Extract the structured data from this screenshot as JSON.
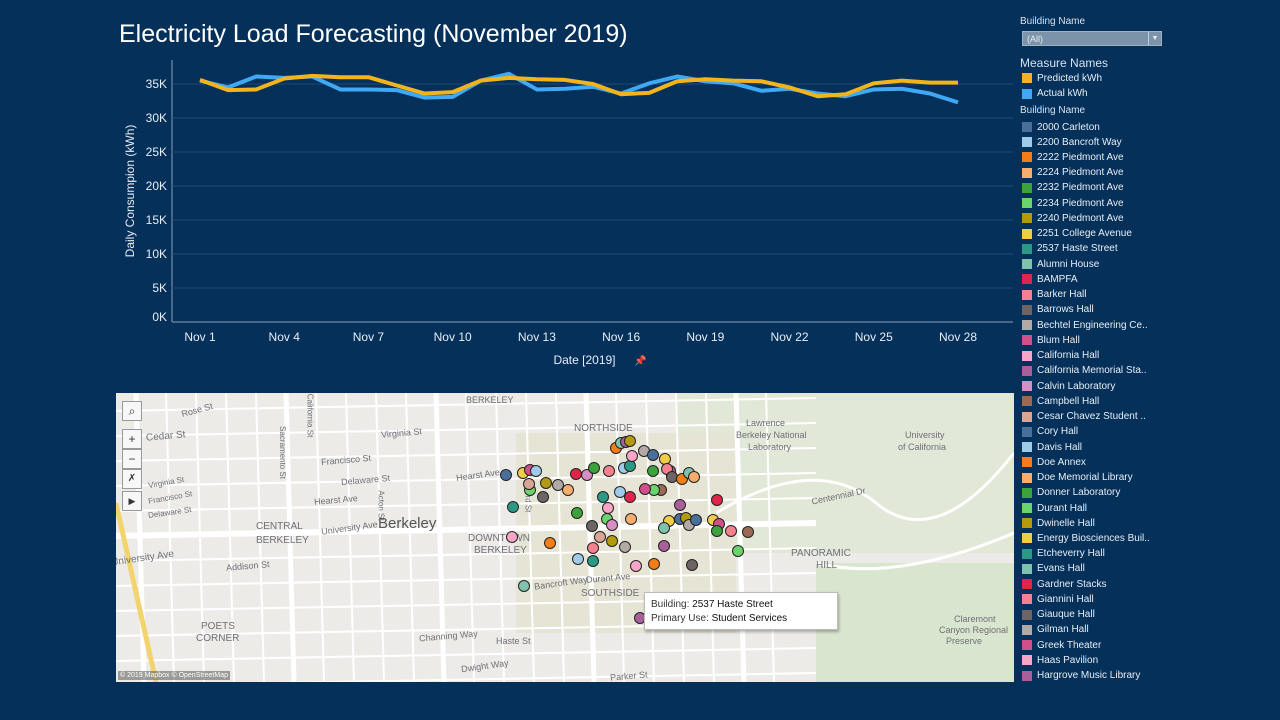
{
  "title": "Electricity Load Forecasting (November 2019)",
  "filter": {
    "label": "Building Name",
    "value": "(All)"
  },
  "measure_legend": {
    "title": "Measure Names",
    "items": [
      {
        "label": "Predicted kWh",
        "color": "#f2b41c"
      },
      {
        "label": "Actual kWh",
        "color": "#3fa9f5"
      }
    ]
  },
  "building_legend": {
    "title": "Building Name",
    "items": [
      {
        "label": "2000 Carleton",
        "color": "#4a6f9a"
      },
      {
        "label": "2200 Bancroft Way",
        "color": "#9fcbe8"
      },
      {
        "label": "2222 Piedmont Ave",
        "color": "#f47d17"
      },
      {
        "label": "2224 Piedmont Ave",
        "color": "#f7ad6e"
      },
      {
        "label": "2232 Piedmont Ave",
        "color": "#3ca23c"
      },
      {
        "label": "2234 Piedmont Ave",
        "color": "#6bd36b"
      },
      {
        "label": "2240 Piedmont Ave",
        "color": "#b49a0f"
      },
      {
        "label": "2251 College Avenue",
        "color": "#f2cd4a"
      },
      {
        "label": "2537 Haste Street",
        "color": "#2a9a86"
      },
      {
        "label": "Alumni House",
        "color": "#7fc2ae"
      },
      {
        "label": "BAMPFA",
        "color": "#e0254a"
      },
      {
        "label": "Barker Hall",
        "color": "#f5818e"
      },
      {
        "label": "Barrows Hall",
        "color": "#6e6464"
      },
      {
        "label": "Bechtel Engineering Ce..",
        "color": "#b3aaa6"
      },
      {
        "label": "Blum Hall",
        "color": "#d1508a"
      },
      {
        "label": "California Hall",
        "color": "#f7a6c8"
      },
      {
        "label": "California Memorial Sta..",
        "color": "#a8609b"
      },
      {
        "label": "Calvin Laboratory",
        "color": "#d68ec4"
      },
      {
        "label": "Campbell Hall",
        "color": "#9b6a55"
      },
      {
        "label": "Cesar Chavez Student ..",
        "color": "#d9a595"
      },
      {
        "label": "Cory Hall",
        "color": "#4a6f9a"
      },
      {
        "label": "Davis Hall",
        "color": "#9fcbe8"
      },
      {
        "label": "Doe Annex",
        "color": "#f47d17"
      },
      {
        "label": "Doe Memorial Library",
        "color": "#f7ad6e"
      },
      {
        "label": "Donner Laboratory",
        "color": "#3ca23c"
      },
      {
        "label": "Durant Hall",
        "color": "#6bd36b"
      },
      {
        "label": "Dwinelle Hall",
        "color": "#b49a0f"
      },
      {
        "label": "Energy Biosciences Buil..",
        "color": "#f2cd4a"
      },
      {
        "label": "Etcheverry Hall",
        "color": "#2a9a86"
      },
      {
        "label": "Evans Hall",
        "color": "#7fc2ae"
      },
      {
        "label": "Gardner Stacks",
        "color": "#e0254a"
      },
      {
        "label": "Giannini Hall",
        "color": "#f5818e"
      },
      {
        "label": "Giauque Hall",
        "color": "#6e6464"
      },
      {
        "label": "Gilman Hall",
        "color": "#b3aaa6"
      },
      {
        "label": "Greek Theater",
        "color": "#d1508a"
      },
      {
        "label": "Haas Pavilion",
        "color": "#f7a6c8"
      },
      {
        "label": "Hargrove Music Library",
        "color": "#a8609b"
      }
    ]
  },
  "chart_data": {
    "type": "line",
    "xlabel": "Date [2019]",
    "ylabel": "Daily Consumpion (kWh)",
    "x": [
      "Nov 1",
      "Nov 2",
      "Nov 3",
      "Nov 4",
      "Nov 5",
      "Nov 6",
      "Nov 7",
      "Nov 8",
      "Nov 9",
      "Nov 10",
      "Nov 11",
      "Nov 12",
      "Nov 13",
      "Nov 14",
      "Nov 15",
      "Nov 16",
      "Nov 17",
      "Nov 18",
      "Nov 19",
      "Nov 20",
      "Nov 21",
      "Nov 22",
      "Nov 23",
      "Nov 24",
      "Nov 25",
      "Nov 26",
      "Nov 27",
      "Nov 28"
    ],
    "xticks": [
      "Nov 1",
      "Nov 4",
      "Nov 7",
      "Nov 10",
      "Nov 13",
      "Nov 16",
      "Nov 19",
      "Nov 22",
      "Nov 25",
      "Nov 28"
    ],
    "yticks": [
      "0K",
      "5K",
      "10K",
      "15K",
      "20K",
      "25K",
      "30K",
      "35K"
    ],
    "ylim": [
      0,
      35000
    ],
    "grid": "horizontal",
    "series": [
      {
        "name": "Actual kWh",
        "color": "#3fa9f5",
        "values": [
          35500,
          34500,
          36100,
          35900,
          36100,
          34200,
          34200,
          34100,
          33000,
          33100,
          35500,
          36500,
          34200,
          34300,
          34600,
          33600,
          35100,
          36100,
          35400,
          35100,
          34000,
          34300,
          33600,
          33200,
          34200,
          34300,
          33600,
          32300
        ]
      },
      {
        "name": "Predicted kWh",
        "color": "#f2b41c",
        "values": [
          35600,
          34100,
          34200,
          35800,
          36200,
          36000,
          36000,
          34800,
          33600,
          33800,
          35500,
          35900,
          35700,
          35600,
          35000,
          33500,
          33700,
          35400,
          35700,
          35500,
          35400,
          34500,
          33200,
          33500,
          35100,
          35500,
          35200,
          35200
        ]
      }
    ]
  },
  "map": {
    "labels": [
      "BERKELEY",
      "Rose St",
      "Cedar St",
      "Virginia St",
      "Francisco St",
      "Delaware St",
      "Hearst Ave",
      "Hearst Ave",
      "CENTRAL",
      "BERKELEY",
      "University Ave",
      "University Ave",
      "Berkeley",
      "DOWNTOWN",
      "BERKELEY",
      "Addison St",
      "POETS",
      "CORNER",
      "Channing Way",
      "Haste St",
      "Dwight Way",
      "NORTHSIDE",
      "Lawrence",
      "Berkeley National",
      "Laboratory",
      "University",
      "of California",
      "Centennial Dr",
      "PANORAMIC",
      "HILL",
      "Claremont",
      "Canyon Regional",
      "Preserve",
      "Bancroft Way",
      "Durant Ave",
      "SOUTHSIDE",
      "Parker St",
      "Sacramento St",
      "California St",
      "Acton St",
      "Oxford St",
      "Virginia St",
      "Francisco St",
      "Delaware St"
    ],
    "attribution": "© 2019 Mapbox © OpenStreetMap",
    "tooltip": {
      "building_label": "Building:",
      "building": "2537 Haste Street",
      "use_label": "Primary Use:",
      "use": "Student Services"
    }
  }
}
